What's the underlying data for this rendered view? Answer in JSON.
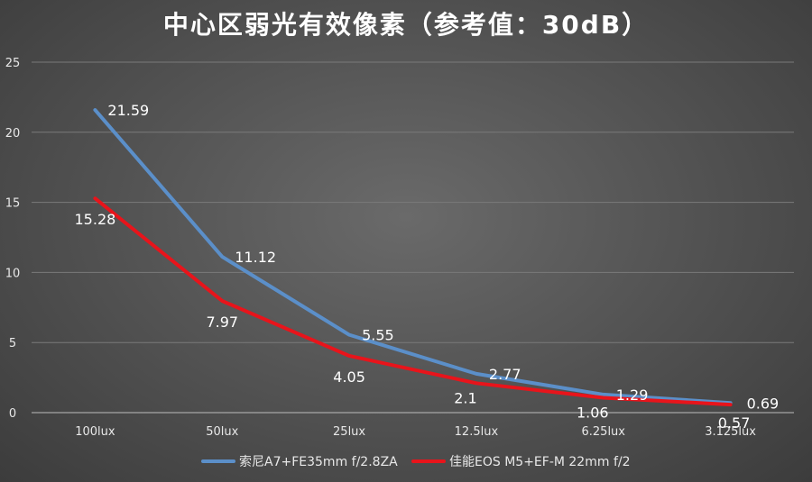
{
  "chart_data": {
    "type": "line",
    "title": "中心区弱光有效像素（参考值：30dB）",
    "xlabel": "",
    "ylabel": "",
    "categories": [
      "100lux",
      "50lux",
      "25lux",
      "12.5lux",
      "6.25lux",
      "3.125lux"
    ],
    "ylim": [
      0,
      25
    ],
    "yticks": [
      0,
      5,
      10,
      15,
      20,
      25
    ],
    "grid": true,
    "legend_position": "bottom",
    "series": [
      {
        "name": "索尼A7+FE35mm f/2.8ZA",
        "color": "#5b8fc9",
        "values": [
          21.59,
          11.12,
          5.55,
          2.77,
          1.29,
          0.69
        ],
        "labels": [
          "21.59",
          "11.12",
          "5.55",
          "2.77",
          "1.29",
          "0.69"
        ]
      },
      {
        "name": "佳能EOS M5+EF-M 22mm f/2",
        "color": "#e8141b",
        "values": [
          15.28,
          7.97,
          4.05,
          2.1,
          1.06,
          0.57
        ],
        "labels": [
          "15.28",
          "7.97",
          "4.05",
          "2.1",
          "1.06",
          "0.57"
        ]
      }
    ]
  }
}
